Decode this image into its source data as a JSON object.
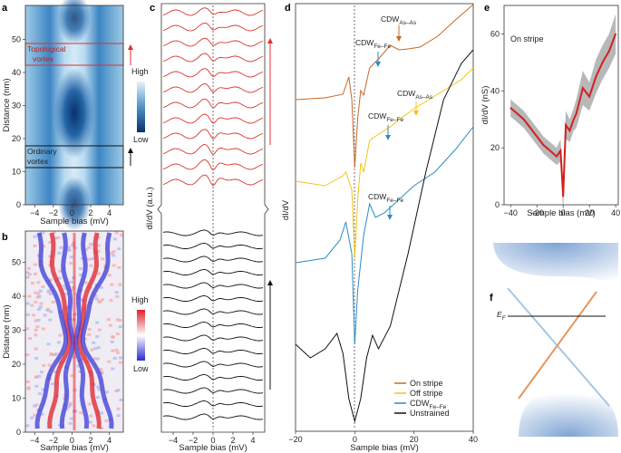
{
  "panels": {
    "a": {
      "label": "a",
      "xlabel": "Sample bias (mV)",
      "ylabel": "Distance (nm)",
      "xticks": [
        "−4",
        "−2",
        "0",
        "2",
        "4"
      ],
      "yticks": [
        "0",
        "10",
        "20",
        "30",
        "40",
        "50"
      ],
      "ann_topo": "Topological\nvortex",
      "ann_ord": "Ordinary\nvortex",
      "cbar_high": "High",
      "cbar_low": "Low",
      "colors": {
        "cbar_top": "#e8f2fb",
        "cbar_bottom": "#08306b",
        "topo_marker": "#e0302e",
        "ord_marker": "#111111"
      }
    },
    "b": {
      "label": "b",
      "xlabel": "Sample bias (mV)",
      "ylabel": "Distance (nm)",
      "xticks": [
        "−4",
        "−2",
        "0",
        "2",
        "4"
      ],
      "yticks": [
        "0",
        "10",
        "20",
        "30",
        "40",
        "50"
      ],
      "cbar_high": "High",
      "cbar_low": "Low",
      "colors": {
        "cbar_top": "#e0202a",
        "cbar_mid": "#ffffff",
        "cbar_bottom": "#2a2ad0"
      }
    },
    "c": {
      "label": "c",
      "xlabel": "Sample bias (mV)",
      "ylabel": "dI/dV (a.u.)",
      "xticks": [
        "−4",
        "−2",
        "0",
        "2",
        "4"
      ],
      "colors": {
        "topological": "#d9342b",
        "ordinary": "#111111"
      },
      "n_topological": 12,
      "n_ordinary": 15
    },
    "d": {
      "label": "d",
      "xlabel": "Sample bias (mV)",
      "ylabel": "dI/dV",
      "xticks": [
        "−20",
        "0",
        "20",
        "40"
      ],
      "ann_cdw_asas_1": {
        "main": "CDW",
        "sub": "As–As"
      },
      "ann_cdw_fefe_1": {
        "main": "CDW",
        "sub": "Fe–Fe"
      },
      "ann_cdw_asas_2": {
        "main": "CDW",
        "sub": "As–As"
      },
      "ann_cdw_fefe_2": {
        "main": "CDW",
        "sub": "Fe–Fe"
      },
      "ann_cdw_fefe_3": {
        "main": "CDW",
        "sub": "Fe–Fe"
      },
      "legend": [
        {
          "label": "On stripe",
          "color": "#c2692a"
        },
        {
          "label": "Off stripe",
          "color": "#f2c318"
        },
        {
          "label": "CDW",
          "sub": "Fe–Fe",
          "color": "#2b8cc4"
        },
        {
          "label": "Unstrained",
          "color": "#111111"
        }
      ]
    },
    "e": {
      "label": "e",
      "title": "On stripe",
      "xlabel": "Sample bias (mV)",
      "ylabel": "dI/dV (nS)",
      "xticks": [
        "−40",
        "−20",
        "0",
        "20",
        "40"
      ],
      "yticks": [
        "0",
        "20",
        "40",
        "60"
      ],
      "colors": {
        "mean": "#d22020",
        "spread": "#888888"
      }
    },
    "f": {
      "label": "f",
      "ef_label": "E",
      "ef_sub": "F",
      "colors": {
        "band_orange": "#e8955a",
        "band_blue": "#a9c6e0",
        "cone": "#8eaed6"
      }
    }
  },
  "chart_data": [
    {
      "type": "line",
      "panel": "e",
      "title": "On stripe",
      "xlabel": "Sample bias (mV)",
      "ylabel": "dI/dV (nS)",
      "xlim": [
        -45,
        42
      ],
      "ylim": [
        0,
        70
      ],
      "x": [
        -40,
        -35,
        -30,
        -25,
        -20,
        -15,
        -10,
        -5,
        -2,
        0,
        2,
        5,
        8,
        10,
        15,
        20,
        25,
        30,
        35,
        40
      ],
      "mean_values": [
        34,
        32,
        30,
        27,
        24,
        21,
        19,
        17,
        19,
        3,
        28,
        26,
        30,
        32,
        41,
        38,
        45,
        50,
        54,
        60
      ],
      "spread_values": [
        3,
        3,
        3,
        3,
        3,
        3,
        3,
        3,
        4,
        6,
        5,
        4,
        4,
        5,
        6,
        5,
        6,
        6,
        6,
        7
      ]
    }
  ]
}
